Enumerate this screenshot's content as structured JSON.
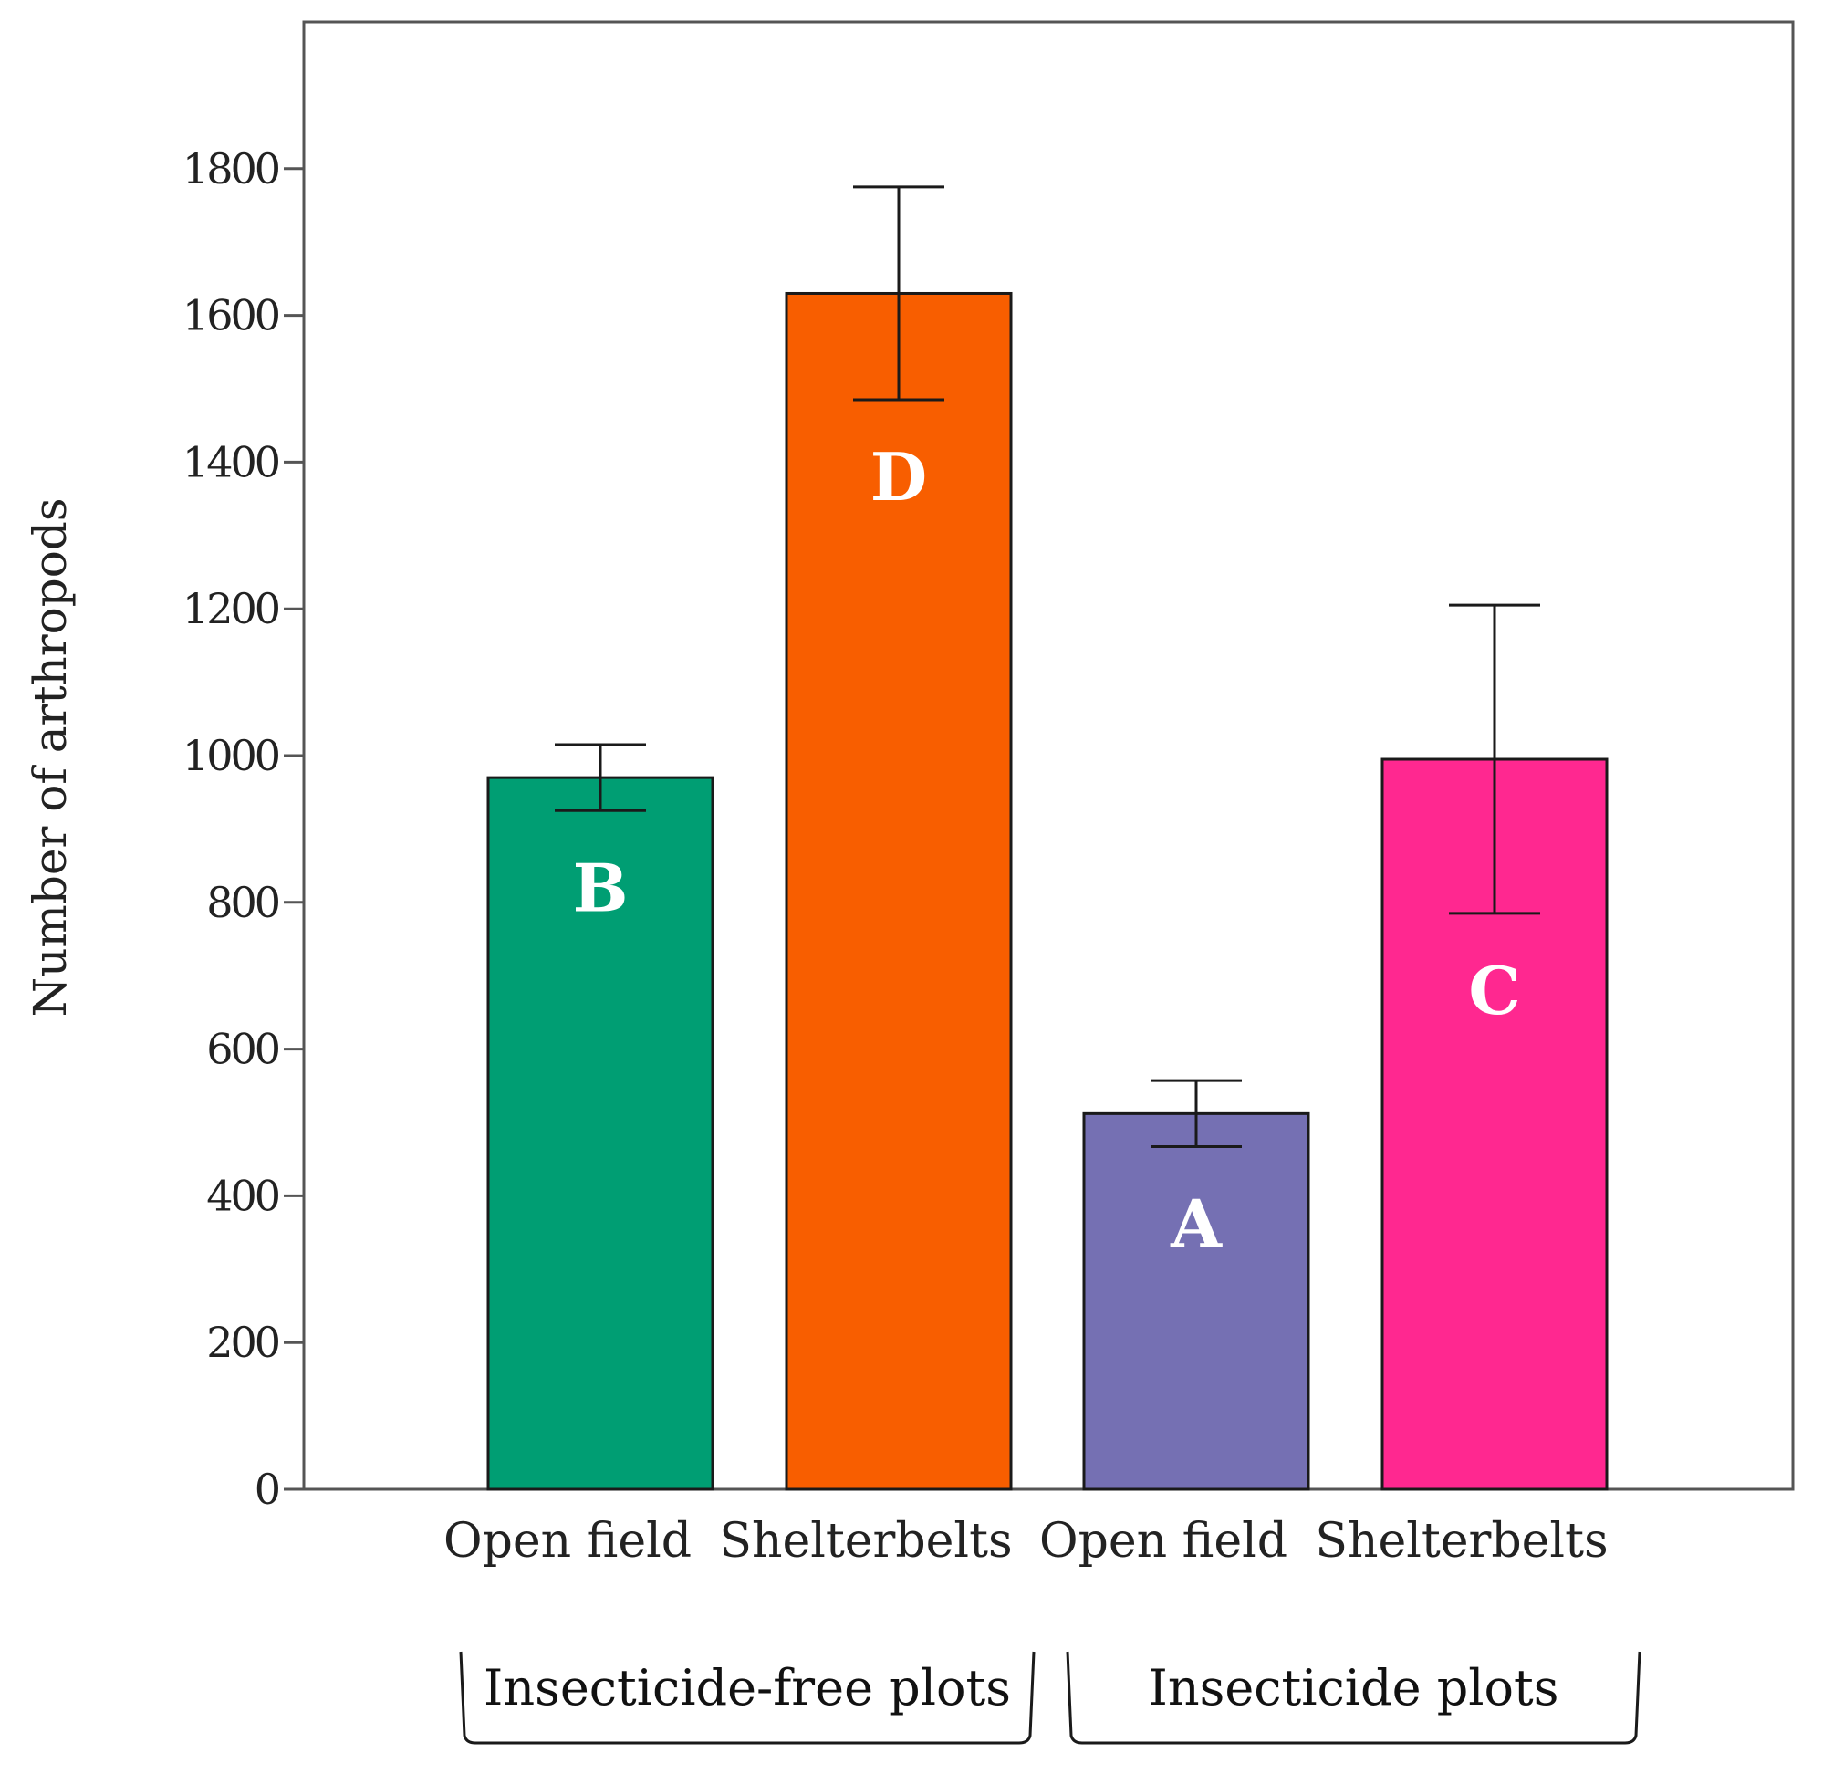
{
  "chart_data": {
    "type": "bar",
    "title": "",
    "xlabel": "",
    "ylabel": "Number of arthropods",
    "ylim": [
      0,
      2000
    ],
    "yticks": [
      0,
      200,
      400,
      600,
      800,
      1000,
      1200,
      1400,
      1600,
      1800
    ],
    "grid": false,
    "legend": "none",
    "categories": [
      "Open field",
      "Shelterbelts",
      "Open field",
      "Shelterbelts"
    ],
    "values": [
      970,
      1630,
      512,
      995
    ],
    "errors": [
      45,
      145,
      45,
      210
    ],
    "significance_letters": [
      "B",
      "D",
      "A",
      "C"
    ],
    "colors": [
      "#009E73",
      "#F85E00",
      "#7570B3",
      "#FF2890"
    ],
    "groups": [
      {
        "label": "Insecticide-free plots",
        "categories": [
          0,
          1
        ]
      },
      {
        "label": "Insecticide plots",
        "categories": [
          2,
          3
        ]
      }
    ]
  }
}
